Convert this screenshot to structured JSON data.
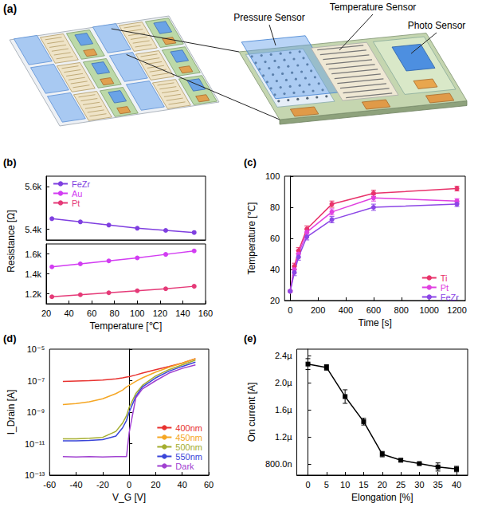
{
  "diagram": {
    "panel": "(a)",
    "labels": [
      "Pressure Sensor",
      "Temperature Sensor",
      "Photo Sensor"
    ]
  },
  "chart_data": [
    {
      "panel": "(b)",
      "type": "line",
      "xlabel": "Temperature [℃]",
      "ylabel": "Resistance [Ω]",
      "x": [
        25,
        50,
        75,
        100,
        125,
        150
      ],
      "series": [
        {
          "name": "FeZr",
          "color": "#7f3fe0",
          "axis": "y2",
          "values": [
            5450,
            5435,
            5420,
            5405,
            5395,
            5385
          ]
        },
        {
          "name": "Au",
          "color": "#d23cf2",
          "values": [
            1470,
            1500,
            1530,
            1560,
            1595,
            1630
          ]
        },
        {
          "name": "Pt",
          "color": "#e53a78",
          "values": [
            1170,
            1190,
            1210,
            1230,
            1250,
            1275
          ]
        }
      ],
      "xlim": [
        20,
        160
      ],
      "xticks": [
        20,
        40,
        60,
        80,
        100,
        120,
        140,
        160
      ],
      "ylim": [
        1100,
        1700
      ],
      "yticks": [
        {
          "value": 1200,
          "label": "1.2k"
        },
        {
          "value": 1400,
          "label": "1.4k"
        },
        {
          "value": 1600,
          "label": "1.6k"
        }
      ],
      "y2lim": [
        5350,
        5650
      ],
      "y2ticks": [
        {
          "value": 5400,
          "label": "5.4k"
        },
        {
          "value": 5600,
          "label": "5.6k"
        }
      ],
      "marker": "circle",
      "legend": "upper left",
      "grid": false
    },
    {
      "panel": "(c)",
      "type": "line",
      "xlabel": "Time [s]",
      "ylabel": "Temperature [℃]",
      "x": [
        0,
        30,
        60,
        120,
        300,
        600,
        1200
      ],
      "series": [
        {
          "name": "Ti",
          "color": "#e8336b",
          "values": [
            26,
            42,
            52,
            66,
            82,
            89,
            92
          ],
          "errors": [
            0.5,
            2,
            2,
            2,
            2,
            2,
            1.5
          ]
        },
        {
          "name": "Pt",
          "color": "#e040e0",
          "values": [
            26,
            40,
            50,
            64,
            77,
            86,
            84
          ],
          "errors": [
            0.5,
            2,
            2,
            2,
            2,
            2,
            1.5
          ]
        },
        {
          "name": "FeZr",
          "color": "#8c46e6",
          "values": [
            26,
            38,
            48,
            61,
            72,
            80,
            82
          ],
          "errors": [
            0.5,
            2,
            2,
            2,
            2,
            2,
            1.5
          ]
        }
      ],
      "xlim": [
        -40,
        1260
      ],
      "xticks": [
        0,
        200,
        400,
        600,
        800,
        1000,
        1200
      ],
      "ylim": [
        20,
        100
      ],
      "yticks": [
        20,
        40,
        60,
        80,
        100
      ],
      "marker": "circle",
      "legend": "lower right",
      "grid": false
    },
    {
      "panel": "(d)",
      "type": "line",
      "xlabel": "V_G [V]",
      "ylabel": "I_Drain [A]",
      "x": [
        -50,
        -40,
        -30,
        -20,
        -10,
        -5,
        -2,
        0,
        5,
        10,
        20,
        30,
        40,
        50
      ],
      "series": [
        {
          "name": "400nm",
          "color": "#e8322f",
          "values": [
            9e-08,
            9.5e-08,
            1e-07,
            1.1e-07,
            1.3e-07,
            1.5e-07,
            1.7e-07,
            1.8e-07,
            2.3e-07,
            3e-07,
            5e-07,
            8e-07,
            1.3e-06,
            2.5e-06
          ]
        },
        {
          "name": "450nm",
          "color": "#f5a623",
          "values": [
            3e-09,
            3.5e-09,
            4.5e-09,
            7e-09,
            1.5e-08,
            2.5e-08,
            4e-08,
            5e-08,
            9e-08,
            1.5e-07,
            3.5e-07,
            7e-07,
            1.3e-06,
            2.5e-06
          ]
        },
        {
          "name": "500nm",
          "color": "#a4ad2e",
          "values": [
            2e-11,
            2e-11,
            2.2e-11,
            2.5e-11,
            6e-11,
            2e-10,
            6e-10,
            2e-09,
            1.5e-08,
            5e-08,
            2e-07,
            5e-07,
            1e-06,
            2e-06
          ]
        },
        {
          "name": "550nm",
          "color": "#3a45d8",
          "values": [
            1.5e-11,
            1.5e-11,
            1.6e-11,
            1.8e-11,
            3e-11,
            1e-10,
            3e-10,
            1e-09,
            1e-08,
            4e-08,
            1.5e-07,
            4e-07,
            8e-07,
            1.5e-06
          ]
        },
        {
          "name": "Dark",
          "color": "#a040d0",
          "values": [
            1.5e-12,
            1.4e-12,
            1.5e-12,
            1.4e-12,
            1.5e-12,
            1.5e-12,
            1.5e-12,
            5e-11,
            8e-09,
            3e-08,
            1e-07,
            3e-07,
            6e-07,
            1e-06
          ]
        }
      ],
      "xlim": [
        -60,
        60
      ],
      "xticks": [
        -60,
        -40,
        -20,
        0,
        20,
        40,
        60
      ],
      "ylim": [
        1e-13,
        1e-05
      ],
      "yticks": [
        {
          "value": 1e-13,
          "label": "10⁻¹³"
        },
        {
          "value": 1e-11,
          "label": "10⁻¹¹"
        },
        {
          "value": 1e-09,
          "label": "10⁻⁹"
        },
        {
          "value": 1e-07,
          "label": "10⁻⁷"
        },
        {
          "value": 1e-05,
          "label": "10⁻⁵"
        }
      ],
      "log": "y",
      "legend": "lower right",
      "grid": false
    },
    {
      "panel": "(e)",
      "type": "line",
      "xlabel": "Elongation [%]",
      "ylabel": "On current [A]",
      "x": [
        0,
        5,
        10,
        15,
        20,
        25,
        30,
        35,
        40
      ],
      "values": [
        2.28e-06,
        2.23e-06,
        1.8e-06,
        1.43e-06,
        9.5e-07,
        8.6e-07,
        8.1e-07,
        7.6e-07,
        7.3e-07
      ],
      "errors": [
        8e-08,
        4e-08,
        1e-07,
        5e-08,
        4e-08,
        2e-08,
        1e-08,
        6e-08,
        4e-08
      ],
      "color": "#000000",
      "xlim": [
        -3,
        43
      ],
      "xticks": [
        0,
        5,
        10,
        15,
        20,
        25,
        30,
        35,
        40
      ],
      "ylim": [
        6.4e-07,
        2.5e-06
      ],
      "yticks": [
        {
          "value": 8e-07,
          "label": "800.0n"
        },
        {
          "value": 1.2e-06,
          "label": "1.2µ"
        },
        {
          "value": 1.6e-06,
          "label": "1.6µ"
        },
        {
          "value": 2e-06,
          "label": "2.0µ"
        },
        {
          "value": 2.4e-06,
          "label": "2.4µ"
        }
      ],
      "marker": "square",
      "grid": false
    }
  ]
}
